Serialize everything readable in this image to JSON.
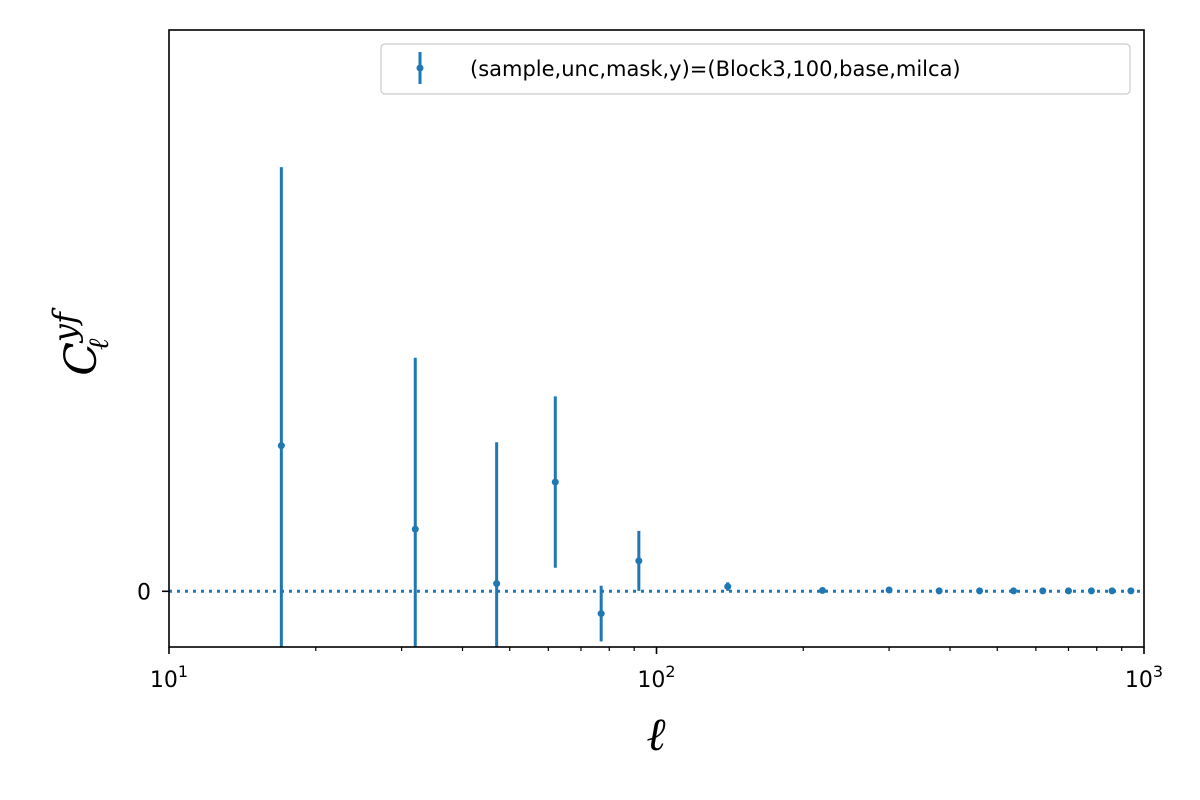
{
  "chart_data": {
    "type": "scatter",
    "title": "",
    "xlabel": "ℓ",
    "ylabel": {
      "base": "C",
      "subscript": "ℓ",
      "superscript": "yf"
    },
    "xscale": "log",
    "xlim": [
      10,
      1000
    ],
    "ylim": [
      -0.13,
      1.31
    ],
    "x_ticks": [
      {
        "value": 10,
        "base": "10",
        "exp": "1"
      },
      {
        "value": 100,
        "base": "10",
        "exp": "2"
      },
      {
        "value": 1000,
        "base": "10",
        "exp": "3"
      }
    ],
    "y_ticks": [
      {
        "value": 0,
        "label": "0"
      }
    ],
    "reference_line": {
      "y": 0,
      "style": "dotted"
    },
    "legend": {
      "position": "top-right"
    },
    "grid": false,
    "color": "#1f77b4",
    "series": [
      {
        "name": "(sample,unc,mask,y)=(Block3,100,base,milca)",
        "points": [
          {
            "x": 17,
            "y": 0.34,
            "err": 0.65
          },
          {
            "x": 32,
            "y": 0.145,
            "err": 0.4
          },
          {
            "x": 47,
            "y": 0.018,
            "err": 0.33
          },
          {
            "x": 62,
            "y": 0.255,
            "err": 0.2
          },
          {
            "x": 77,
            "y": -0.052,
            "err": 0.065
          },
          {
            "x": 92,
            "y": 0.071,
            "err": 0.07
          },
          {
            "x": 140,
            "y": 0.011,
            "err": 0.01
          },
          {
            "x": 219,
            "y": 0.002,
            "err": 0.002
          },
          {
            "x": 300,
            "y": 0.003,
            "err": 0.002
          },
          {
            "x": 380,
            "y": 0.001,
            "err": 0.001
          },
          {
            "x": 460,
            "y": 0.001,
            "err": 0.001
          },
          {
            "x": 540,
            "y": 0.001,
            "err": 0.001
          },
          {
            "x": 620,
            "y": 0.001,
            "err": 0.001
          },
          {
            "x": 700,
            "y": 0.001,
            "err": 0.001
          },
          {
            "x": 780,
            "y": 0.001,
            "err": 0.001
          },
          {
            "x": 860,
            "y": 0.001,
            "err": 0.001
          },
          {
            "x": 940,
            "y": 0.001,
            "err": 0.001
          }
        ]
      }
    ]
  }
}
